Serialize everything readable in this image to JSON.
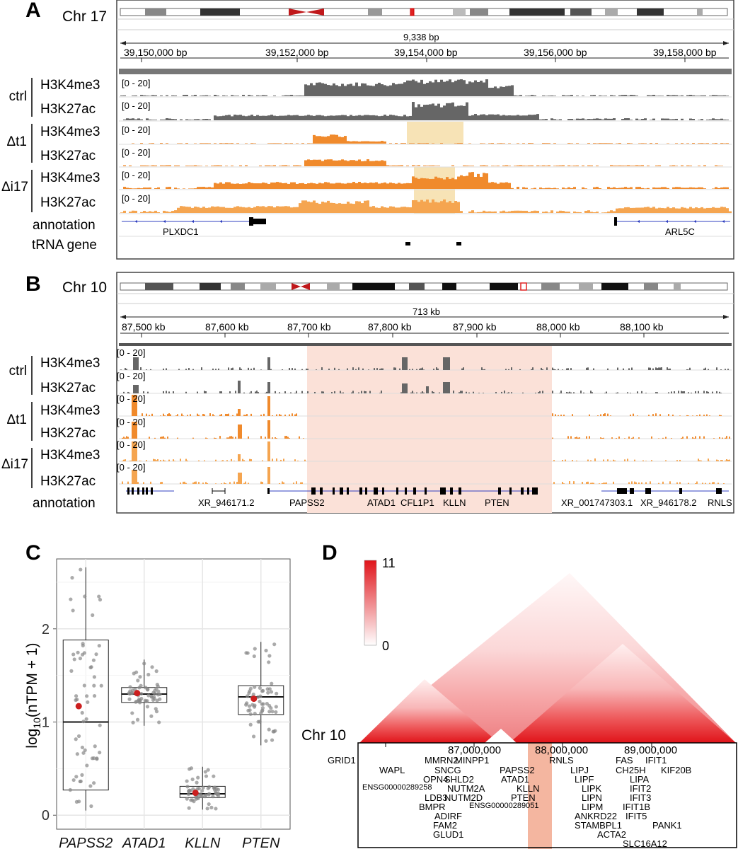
{
  "panels": {
    "A": {
      "letter": "A",
      "chrom": "Chr 17",
      "span": "9,338 bp",
      "ticks": [
        "39,150,000 bp",
        "39,152,000 bp",
        "39,154,000 bp",
        "39,156,000 bp",
        "39,158,000 bp"
      ],
      "groups": [
        {
          "label": "ctrl",
          "color": "#666666"
        },
        {
          "label": "Δt1",
          "color": "#f08a2c"
        },
        {
          "label": "Δi17",
          "color": "#f08a2c"
        }
      ],
      "marks": [
        "H3K4me3",
        "H3K27ac"
      ],
      "range_label": "[0 - 20]",
      "annotation_label": "annotation",
      "trna_label": "tRNA gene",
      "genes": [
        "PLXDC1",
        "ARL5C"
      ]
    },
    "B": {
      "letter": "B",
      "chrom": "Chr 10",
      "span": "713 kb",
      "ticks": [
        "87,500 kb",
        "87,600 kb",
        "87,700 kb",
        "87,800 kb",
        "87,900 kb",
        "88,000 kb",
        "88,100 kb"
      ],
      "groups": [
        {
          "label": "ctrl",
          "color": "#666666"
        },
        {
          "label": "Δt1",
          "color": "#f08a2c"
        },
        {
          "label": "Δi17",
          "color": "#f08a2c"
        }
      ],
      "marks": [
        "H3K4me3",
        "H3K27ac"
      ],
      "range_label": "[0 - 20]",
      "annotation_label": "annotation",
      "genes": [
        "XR_946171.2",
        "PAPSS2",
        "ATAD1",
        "CFL1P1",
        "KLLN",
        "PTEN",
        "XR_001747303.1",
        "XR_946178.2",
        "RNLS"
      ]
    },
    "C": {
      "letter": "C",
      "ylabel_main": "log",
      "ylabel_sub": "10",
      "ylabel_rest": "(nTPM + 1)",
      "y_ticks": [
        "0",
        "1",
        "2"
      ]
    },
    "D": {
      "letter": "D",
      "chrom": "Chr 10",
      "scale_max": "11",
      "scale_min": "0",
      "ticks": [
        "87,000,000",
        "88,000,000",
        "89,000,000"
      ],
      "genes": [
        "GRID1",
        "MMRN2",
        "MINPP1",
        "PAPSS2",
        "RNLS",
        "FAS",
        "IFIT1",
        "WAPL",
        "SNCG",
        "LIPJ",
        "CH25H",
        "KIF20B",
        "OPN4",
        "SHLD2",
        "ATAD1",
        "LIPF",
        "LIPA",
        "ENSG00000289258",
        "NUTM2A",
        "KLLN",
        "LIPK",
        "IFIT2",
        "LDB3",
        "NUTM2D",
        "PTEN",
        "LIPN",
        "IFIT3",
        "BMPR",
        "ENSG00000289051",
        "LIPM",
        "IFIT1B",
        "ADIRF",
        "ANKRD22",
        "IFIT5",
        "FAM2",
        "STAMBPL1",
        "PANK1",
        "GLUD1",
        "ACTA2",
        "SLC16A12"
      ]
    }
  },
  "chart_data": {
    "type": "box",
    "categories": [
      "PAPSS2",
      "ATAD1",
      "KLLN",
      "PTEN"
    ],
    "ylabel": "log10(nTPM + 1)",
    "ylim": [
      0,
      2.7
    ],
    "boxes": [
      {
        "name": "PAPSS2",
        "min": 0.05,
        "q1": 0.27,
        "median": 1.0,
        "q3": 1.88,
        "max": 2.66,
        "highlight": 1.17
      },
      {
        "name": "ATAD1",
        "min": 0.96,
        "q1": 1.21,
        "median": 1.3,
        "q3": 1.37,
        "max": 1.67,
        "highlight": 1.31
      },
      {
        "name": "KLLN",
        "min": 0.06,
        "q1": 0.19,
        "median": 0.23,
        "q3": 0.31,
        "max": 0.52,
        "highlight": 0.24
      },
      {
        "name": "PTEN",
        "min": 0.75,
        "q1": 1.08,
        "median": 1.27,
        "q3": 1.39,
        "max": 1.86,
        "highlight": 1.25
      }
    ],
    "colors": {
      "points": "#888888",
      "highlight": "#cc1f1f"
    }
  }
}
